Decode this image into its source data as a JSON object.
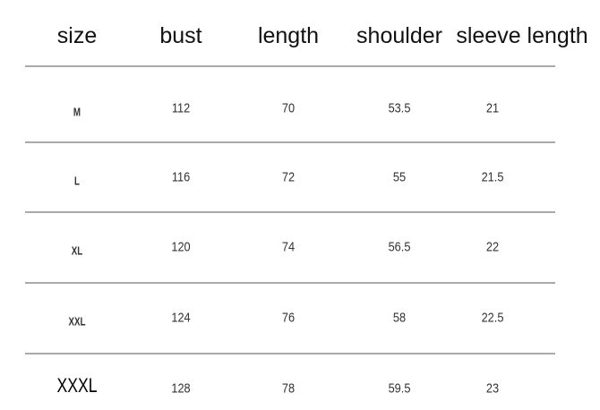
{
  "headers": [
    "size",
    "bust",
    "length",
    "shoulder",
    "sleeve length"
  ],
  "rows": [
    [
      "M",
      "112",
      "70",
      "53.5",
      "21"
    ],
    [
      "L",
      "116",
      "72",
      "55",
      "21.5"
    ],
    [
      "XL",
      "120",
      "74",
      "56.5",
      "22"
    ],
    [
      "XXL",
      "124",
      "76",
      "58",
      "22.5"
    ],
    [
      "XXXL",
      "128",
      "78",
      "59.5",
      "23"
    ]
  ]
}
